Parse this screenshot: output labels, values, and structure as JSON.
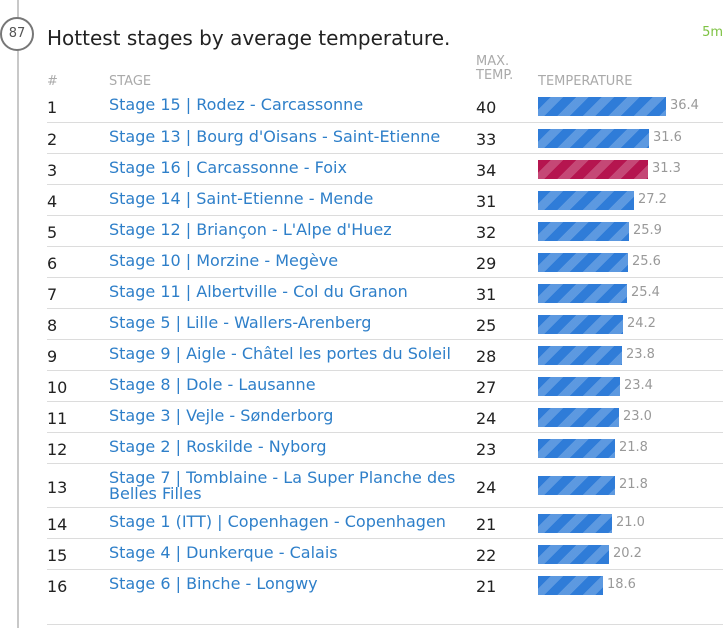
{
  "badge": "87",
  "title": "Hottest stages by average temperature.",
  "time_ago": "5m",
  "headers": {
    "num": "#",
    "stage": "STAGE",
    "max_line1": "MAX.",
    "max_line2": "TEMP.",
    "temperature": "TEMPERATURE"
  },
  "colors": {
    "bar": "#2f7cd8",
    "highlight": "#b5154f",
    "link": "#2e7fc9"
  },
  "chart_data": {
    "type": "bar",
    "ylabel": "TEMPERATURE",
    "ylim": [
      0,
      36.4
    ],
    "highlight_index": 2,
    "rows": [
      {
        "rank": "1",
        "stage": "Stage 15 | Rodez - Carcassonne",
        "max": "40",
        "avg": 36.4,
        "avg_label": "36.4"
      },
      {
        "rank": "2",
        "stage": "Stage 13 | Bourg d'Oisans - Saint-Etienne",
        "max": "33",
        "avg": 31.6,
        "avg_label": "31.6"
      },
      {
        "rank": "3",
        "stage": "Stage 16 | Carcassonne - Foix",
        "max": "34",
        "avg": 31.3,
        "avg_label": "31.3"
      },
      {
        "rank": "4",
        "stage": "Stage 14 | Saint-Etienne - Mende",
        "max": "31",
        "avg": 27.2,
        "avg_label": "27.2"
      },
      {
        "rank": "5",
        "stage": "Stage 12 | Briançon - L'Alpe d'Huez",
        "max": "32",
        "avg": 25.9,
        "avg_label": "25.9"
      },
      {
        "rank": "6",
        "stage": "Stage 10 | Morzine - Megève",
        "max": "29",
        "avg": 25.6,
        "avg_label": "25.6"
      },
      {
        "rank": "7",
        "stage": "Stage 11 | Albertville - Col du Granon",
        "max": "31",
        "avg": 25.4,
        "avg_label": "25.4"
      },
      {
        "rank": "8",
        "stage": "Stage 5 | Lille - Wallers-Arenberg",
        "max": "25",
        "avg": 24.2,
        "avg_label": "24.2"
      },
      {
        "rank": "9",
        "stage": "Stage 9 | Aigle - Châtel les portes du Soleil",
        "max": "28",
        "avg": 23.8,
        "avg_label": "23.8"
      },
      {
        "rank": "10",
        "stage": "Stage 8 | Dole - Lausanne",
        "max": "27",
        "avg": 23.4,
        "avg_label": "23.4"
      },
      {
        "rank": "11",
        "stage": "Stage 3 | Vejle - Sønderborg",
        "max": "24",
        "avg": 23.0,
        "avg_label": "23.0"
      },
      {
        "rank": "12",
        "stage": "Stage 2 | Roskilde - Nyborg",
        "max": "23",
        "avg": 21.8,
        "avg_label": "21.8"
      },
      {
        "rank": "13",
        "stage": "Stage 7 | Tomblaine - La Super Planche des Belles Filles",
        "max": "24",
        "avg": 21.8,
        "avg_label": "21.8"
      },
      {
        "rank": "14",
        "stage": "Stage 1 (ITT) | Copenhagen - Copenhagen",
        "max": "21",
        "avg": 21.0,
        "avg_label": "21.0"
      },
      {
        "rank": "15",
        "stage": "Stage 4 | Dunkerque - Calais",
        "max": "22",
        "avg": 20.2,
        "avg_label": "20.2"
      },
      {
        "rank": "16",
        "stage": "Stage 6 | Binche - Longwy",
        "max": "21",
        "avg": 18.6,
        "avg_label": "18.6"
      }
    ]
  }
}
